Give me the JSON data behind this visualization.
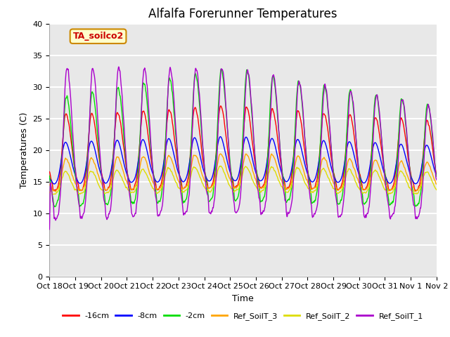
{
  "title": "Alfalfa Forerunner Temperatures",
  "xlabel": "Time",
  "ylabel": "Temperatures (C)",
  "ylim": [
    0,
    40
  ],
  "xlim": [
    0,
    15
  ],
  "annotation": "TA_soilco2",
  "xtick_labels": [
    "Oct 18",
    "Oct 19",
    "Oct 20",
    "Oct 21",
    "Oct 22",
    "Oct 23",
    "Oct 24",
    "Oct 25",
    "Oct 26",
    "Oct 27",
    "Oct 28",
    "Oct 29",
    "Oct 30",
    "Oct 31",
    "Nov 1",
    "Nov 2"
  ],
  "legend_labels": [
    "-16cm",
    "-8cm",
    "-2cm",
    "Ref_SoilT_3",
    "Ref_SoilT_2",
    "Ref_SoilT_1"
  ],
  "colors": {
    "-16cm": "#ff0000",
    "-8cm": "#0000ff",
    "-2cm": "#00dd00",
    "Ref_SoilT_3": "#ffa500",
    "Ref_SoilT_2": "#dddd00",
    "Ref_SoilT_1": "#aa00cc"
  },
  "background_color": "#e8e8e8",
  "grid_color": "#ffffff",
  "title_fontsize": 12,
  "axis_fontsize": 9,
  "tick_fontsize": 8,
  "legend_fontsize": 8,
  "annotation_fontsize": 9,
  "annotation_bg": "#ffffcc",
  "annotation_fg": "#cc0000",
  "annotation_border": "#cc8800"
}
